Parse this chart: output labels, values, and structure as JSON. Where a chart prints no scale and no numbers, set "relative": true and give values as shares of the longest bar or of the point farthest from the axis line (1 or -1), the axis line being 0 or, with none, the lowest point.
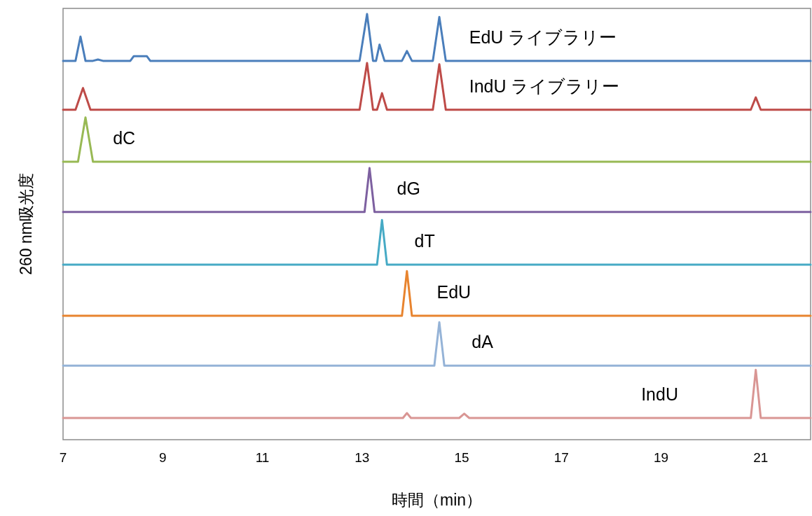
{
  "chart_data": {
    "type": "line",
    "relative": true,
    "xlabel": "時間（min）",
    "ylabel": "260 nm吸光度",
    "xlim": [
      7,
      22
    ],
    "xticks": [
      7,
      9,
      11,
      13,
      15,
      17,
      19,
      21
    ],
    "series": [
      {
        "name": "EdU ライブラリー",
        "color": "#4a7ebb",
        "x": [
          7,
          7.25,
          7.35,
          7.45,
          7.6,
          7.7,
          7.8,
          8.35,
          8.42,
          8.68,
          8.75,
          12.95,
          13.1,
          13.22,
          13.28,
          13.35,
          13.45,
          13.8,
          13.9,
          14.0,
          14.42,
          14.55,
          14.68,
          22
        ],
        "values": [
          0.89,
          0.89,
          0.947,
          0.89,
          0.89,
          0.893,
          0.89,
          0.89,
          0.901,
          0.901,
          0.89,
          0.89,
          1.0,
          0.89,
          0.89,
          0.928,
          0.89,
          0.89,
          0.913,
          0.89,
          0.89,
          0.993,
          0.89,
          0.89
        ]
      },
      {
        "name": "IndU ライブラリー",
        "color": "#be4b48",
        "x": [
          7,
          7.25,
          7.4,
          7.55,
          12.95,
          13.1,
          13.22,
          13.3,
          13.4,
          13.5,
          14.42,
          14.55,
          14.68,
          20.8,
          20.9,
          21.0,
          22
        ],
        "values": [
          0.775,
          0.775,
          0.826,
          0.775,
          0.775,
          0.885,
          0.775,
          0.775,
          0.814,
          0.775,
          0.775,
          0.882,
          0.775,
          0.775,
          0.804,
          0.775,
          0.775
        ]
      },
      {
        "name": "dC",
        "color": "#98b954",
        "x": [
          7,
          7.3,
          7.45,
          7.6,
          22
        ],
        "values": [
          0.653,
          0.653,
          0.757,
          0.653,
          0.653
        ]
      },
      {
        "name": "dG",
        "color": "#7d60a0",
        "x": [
          7,
          13.05,
          13.15,
          13.25,
          22
        ],
        "values": [
          0.535,
          0.535,
          0.638,
          0.535,
          0.535
        ]
      },
      {
        "name": "dT",
        "color": "#46aac5",
        "x": [
          7,
          13.3,
          13.4,
          13.5,
          22
        ],
        "values": [
          0.411,
          0.411,
          0.516,
          0.411,
          0.411
        ]
      },
      {
        "name": "EdU",
        "color": "#e8842f",
        "x": [
          7,
          13.8,
          13.9,
          14.0,
          22
        ],
        "values": [
          0.291,
          0.291,
          0.396,
          0.291,
          0.291
        ]
      },
      {
        "name": "dA",
        "color": "#95b3d7",
        "x": [
          7,
          14.45,
          14.55,
          14.65,
          22
        ],
        "values": [
          0.174,
          0.174,
          0.276,
          0.174,
          0.174
        ]
      },
      {
        "name": "IndU",
        "color": "#d99694",
        "x": [
          7,
          13.82,
          13.9,
          13.98,
          14.95,
          15.05,
          15.15,
          20.8,
          20.9,
          21.0,
          22
        ],
        "values": [
          0.051,
          0.051,
          0.0625,
          0.051,
          0.051,
          0.061,
          0.051,
          0.051,
          0.164,
          0.051,
          0.051
        ]
      }
    ]
  }
}
